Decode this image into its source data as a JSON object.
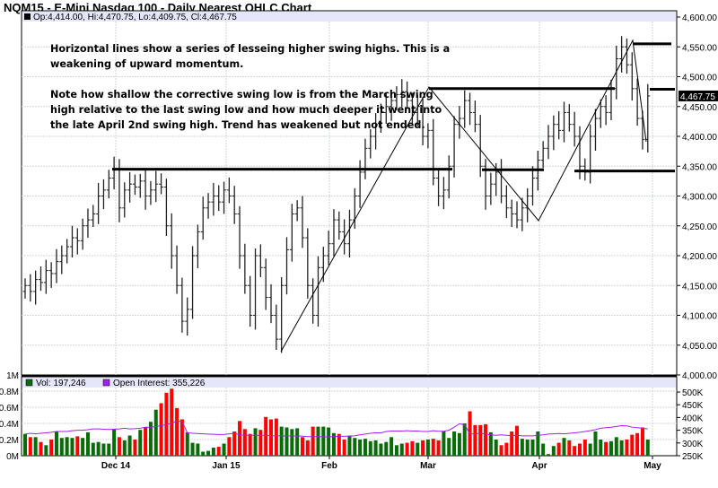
{
  "title": "NQM15 - E-Mini Nasdaq 100 - Daily Nearest OHLC Chart",
  "ohlc_legend": "Op:4,414.00, Hi:4,470.75, Lo:4,409.75, Cl:4,467.75",
  "last_price_label": "4,467.75",
  "notes": {
    "line1": "Horizontal lines show a series of lesseing higher swing highs.  This is a",
    "line2": "weakening of upward momentum.",
    "line3": "Note how shallow the corrective swing low is from the March swing",
    "line4": "high relative to the last swing low and how much deeper it went into",
    "line5": "the late April 2nd swing high.  Trend has weakened but not ended."
  },
  "volume_legend": {
    "vol": "Vol: 197,246",
    "oi": "Open Interest: 355,226"
  },
  "colors": {
    "up": "#0a6b0a",
    "down": "#ff0000",
    "oi": "#a020f0",
    "legend_bg": "#e6e6fa",
    "bar": "#000000"
  },
  "chart_data": {
    "type": "ohlc",
    "price_axis": {
      "min": 4000,
      "max": 4600,
      "ticks": [
        "4,000.00",
        "4,050.00",
        "4,100.00",
        "4,150.00",
        "4,200.00",
        "4,250.00",
        "4,300.00",
        "4,350.00",
        "4,400.00",
        "4,450.00",
        "4,500.00",
        "4,550.00",
        "4,600.00"
      ]
    },
    "volume_axis_left": {
      "min": 0,
      "max": 1,
      "ticks": [
        "0M",
        "0.2M",
        "0.4M",
        "0.6M",
        "0.8M",
        "1M"
      ]
    },
    "oi_axis_right": {
      "min": 250,
      "max": 500,
      "ticks": [
        "250K",
        "300K",
        "350K",
        "400K",
        "450K",
        "500K"
      ]
    },
    "date_labels": [
      "Dec 14",
      "Jan 15",
      "Feb",
      "Mar",
      "Apr",
      "May"
    ],
    "closes": [
      4150,
      4140,
      4160,
      4155,
      4175,
      4170,
      4190,
      4200,
      4215,
      4230,
      4225,
      4250,
      4260,
      4270,
      4300,
      4310,
      4330,
      4345,
      4280,
      4310,
      4320,
      4315,
      4325,
      4300,
      4310,
      4320,
      4315,
      4250,
      4200,
      4150,
      4090,
      4110,
      4200,
      4240,
      4280,
      4290,
      4300,
      4290,
      4310,
      4300,
      4270,
      4200,
      4150,
      4100,
      4200,
      4180,
      4130,
      4100,
      4060,
      4150,
      4210,
      4270,
      4280,
      4230,
      4150,
      4100,
      4180,
      4200,
      4220,
      4260,
      4240,
      4220,
      4260,
      4300,
      4340,
      4380,
      4400,
      4420,
      4440,
      4450,
      4460,
      4470,
      4475,
      4460,
      4440,
      4450,
      4400,
      4410,
      4330,
      4300,
      4310,
      4350,
      4420,
      4430,
      4460,
      4440,
      4420,
      4350,
      4300,
      4320,
      4340,
      4300,
      4280,
      4270,
      4260,
      4280,
      4300,
      4330,
      4360,
      4380,
      4400,
      4420,
      4410,
      4440,
      4420,
      4400,
      4350,
      4340,
      4400,
      4430,
      4450,
      4440,
      4480,
      4530,
      4550,
      4520,
      4480,
      4430,
      4395,
      4467.75
    ],
    "volume_m": [
      0.27,
      0.23,
      0.23,
      0.17,
      0.13,
      0.2,
      0.3,
      0.22,
      0.23,
      0.22,
      0.24,
      0.22,
      0.29,
      0.16,
      0.17,
      0.15,
      0.15,
      0.33,
      0.23,
      0.19,
      0.25,
      0.2,
      0.32,
      0.35,
      0.42,
      0.57,
      0.65,
      0.78,
      0.83,
      0.59,
      0.45,
      0.29,
      0.16,
      0.15,
      0.05,
      0.06,
      0.1,
      0.11,
      0.15,
      0.23,
      0.3,
      0.43,
      0.33,
      0.27,
      0.34,
      0.32,
      0.48,
      0.45,
      0.46,
      0.36,
      0.35,
      0.33,
      0.34,
      0.23,
      0.19,
      0.36,
      0.36,
      0.36,
      0.35,
      0.28,
      0.27,
      0.2,
      0.25,
      0.22,
      0.2,
      0.21,
      0.18,
      0.19,
      0.15,
      0.17,
      0.23,
      0.13,
      0.15,
      0.16,
      0.18,
      0.16,
      0.19,
      0.2,
      0.21,
      0.19,
      0.3,
      0.22,
      0.3,
      0.28,
      0.4,
      0.55,
      0.38,
      0.38,
      0.39,
      0.29,
      0.2,
      0.13,
      0.16,
      0.3,
      0.37,
      0.21,
      0.2,
      0.2,
      0.3,
      0.15,
      0.02,
      0.12,
      0.16,
      0.22,
      0.19,
      0.12,
      0.15,
      0.2,
      0.15,
      0.3,
      0.2,
      0.17,
      0.18,
      0.23,
      0.19,
      0.2,
      0.26,
      0.28,
      0.35,
      0.2
    ],
    "open_interest_k": [
      335,
      338,
      336,
      338,
      340,
      342,
      345,
      345,
      345,
      348,
      350,
      350,
      352,
      355,
      355,
      354,
      353,
      354,
      355,
      358,
      355,
      356,
      358,
      362,
      362,
      365,
      368,
      372,
      378,
      385,
      385,
      340,
      338,
      337,
      336,
      335,
      334,
      333,
      333,
      336,
      338,
      332,
      330,
      330,
      330,
      330,
      330,
      328,
      328,
      328,
      328,
      328,
      327,
      327,
      325,
      325,
      325,
      324,
      324,
      325,
      326,
      326,
      327,
      328,
      332,
      335,
      338,
      340,
      340,
      345,
      347,
      347,
      347,
      348,
      347,
      347,
      345,
      345,
      348,
      346,
      346,
      350,
      362,
      375,
      372,
      335,
      336,
      338,
      335,
      332,
      330,
      332,
      330,
      328,
      330,
      328,
      328,
      328,
      330,
      332,
      335,
      336,
      337,
      336,
      338,
      340,
      342,
      345,
      348,
      352,
      358,
      360,
      362,
      365,
      368,
      367,
      362,
      360,
      358,
      355.2
    ]
  }
}
